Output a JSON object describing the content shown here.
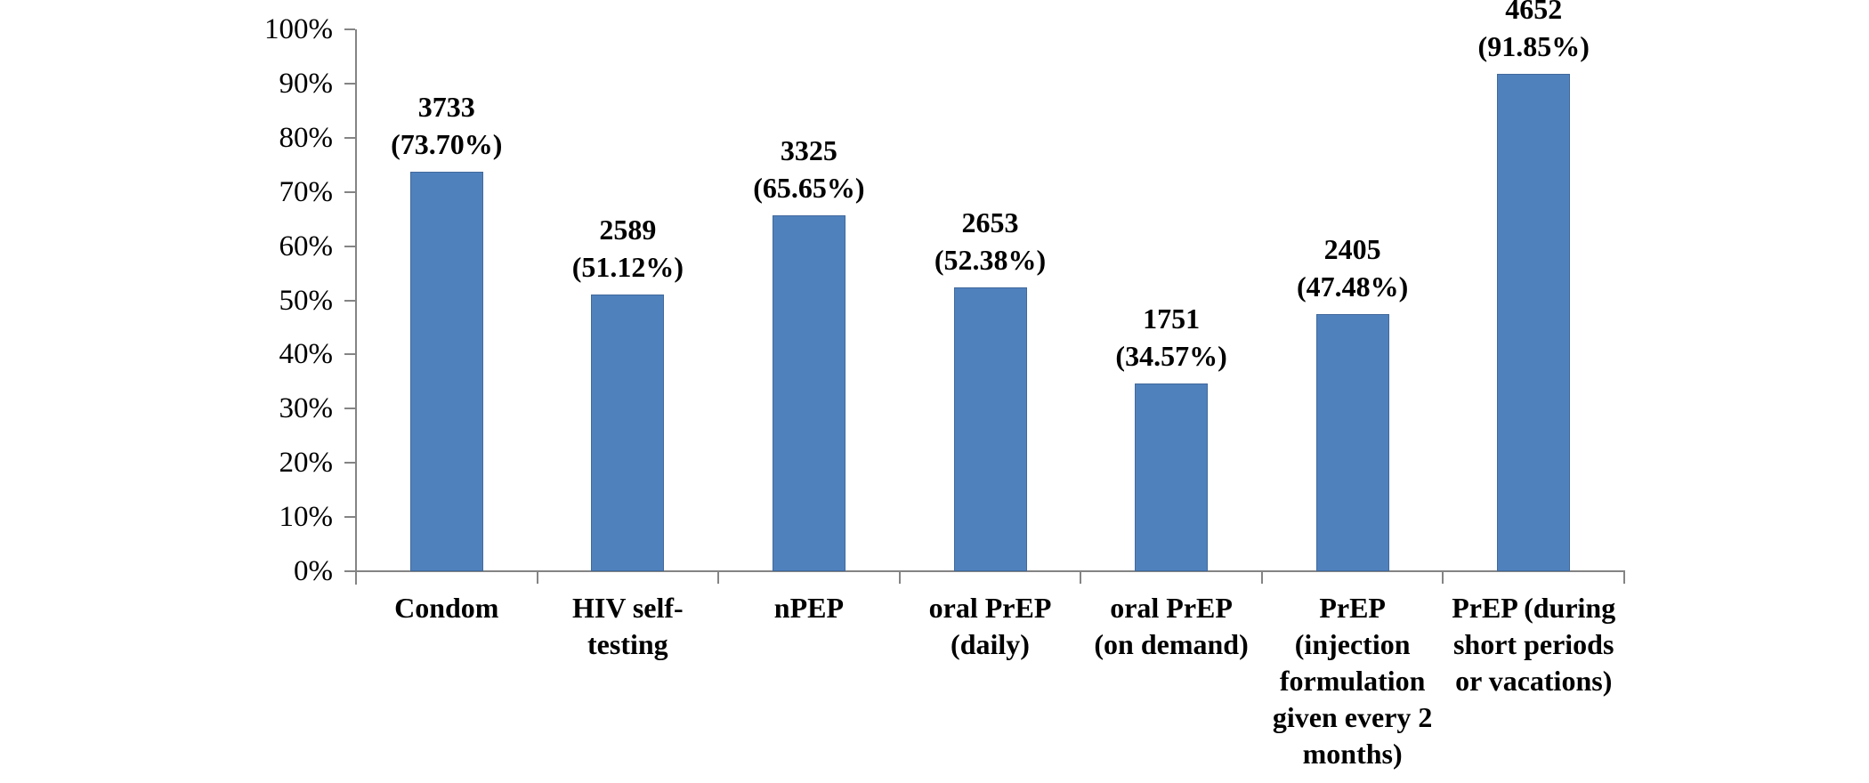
{
  "chart_data": {
    "type": "bar",
    "title": "",
    "xlabel": "",
    "ylabel": "",
    "ylim": [
      0,
      100
    ],
    "grid": false,
    "legend": null,
    "ytick_labels": [
      "0%",
      "10%",
      "20%",
      "30%",
      "40%",
      "50%",
      "60%",
      "70%",
      "80%",
      "90%",
      "100%"
    ],
    "categories": [
      "Condom",
      "HIV self-testing",
      "nPEP",
      "oral PrEP (daily)",
      "oral PrEP (on demand)",
      "PrEP (injection formulation given every 2 months)",
      "PrEP (during short periods or vacations)"
    ],
    "category_lines": [
      [
        "Condom"
      ],
      [
        "HIV self-",
        "testing"
      ],
      [
        "nPEP"
      ],
      [
        "oral PrEP",
        "(daily)"
      ],
      [
        "oral PrEP",
        "(on demand)"
      ],
      [
        "PrEP",
        "(injection",
        "formulation",
        "given every 2",
        "months)"
      ],
      [
        "PrEP (during",
        "short periods",
        "or vacations)"
      ]
    ],
    "values": [
      3733,
      2589,
      3325,
      2653,
      1751,
      2405,
      4652
    ],
    "percentages": [
      73.7,
      51.12,
      65.65,
      52.38,
      34.57,
      47.48,
      91.85
    ],
    "data_labels": [
      [
        "3733",
        "(73.70%)"
      ],
      [
        "2589",
        "(51.12%)"
      ],
      [
        "3325",
        "(65.65%)"
      ],
      [
        "2653",
        "(52.38%)"
      ],
      [
        "1751",
        "(34.57%)"
      ],
      [
        "2405",
        "(47.48%)"
      ],
      [
        "4652",
        "(91.85%)"
      ]
    ],
    "colors": {
      "bar_fill": "#4F81BD",
      "bar_border": "#41699C",
      "axis": "#848484",
      "text": "#000000",
      "background": "#FFFFFF"
    }
  }
}
